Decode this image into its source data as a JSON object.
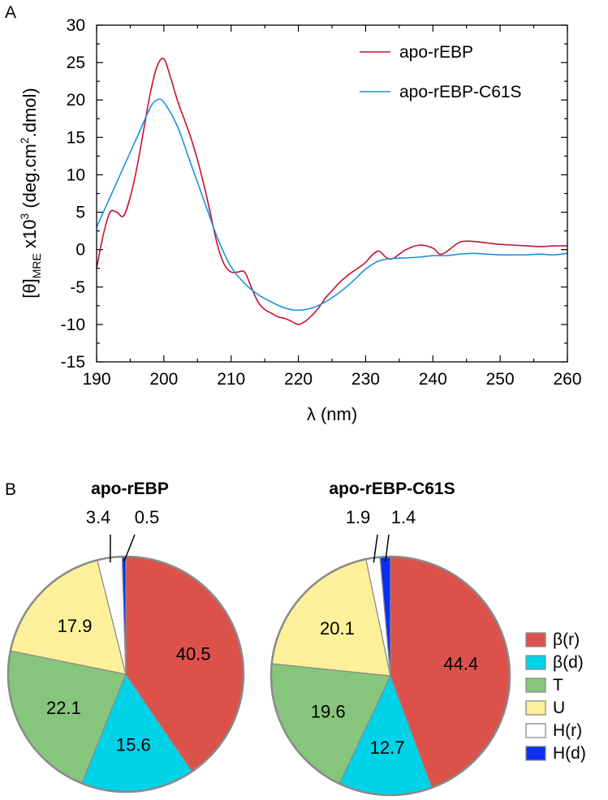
{
  "panels": {
    "a": "A",
    "b": "B"
  },
  "chart_data": [
    {
      "type": "line",
      "ylabel": {
        "base": "[θ]",
        "sub": "MRE",
        "rest1": " x10",
        "sup1": "3",
        "rest2": " (deg.cm",
        "sup2": "2",
        "rest3": ".dmol)"
      },
      "xlabel": "λ (nm)",
      "xlim": [
        190,
        260
      ],
      "ylim": [
        -15,
        30
      ],
      "xticks": [
        190,
        200,
        210,
        220,
        230,
        240,
        250,
        260
      ],
      "yticks": [
        -15,
        -10,
        -5,
        0,
        5,
        10,
        15,
        20,
        25,
        30
      ],
      "legend_position": "top-right",
      "grid": false,
      "series": [
        {
          "name": "apo-rEBP",
          "color": "#c8102e",
          "x": [
            190,
            191,
            192,
            193,
            194,
            195,
            196,
            197,
            198,
            199,
            200,
            201,
            202,
            203,
            204,
            205,
            206,
            207,
            208,
            209,
            210,
            211,
            212,
            213,
            214,
            215,
            216,
            217,
            218,
            219,
            220,
            221,
            222,
            223,
            224,
            225,
            226,
            227,
            228,
            229,
            230,
            231,
            232,
            233,
            234,
            236,
            238,
            240,
            241,
            242,
            244,
            246,
            248,
            250,
            252,
            254,
            256,
            258,
            260
          ],
          "y": [
            -2.5,
            2,
            5,
            5,
            4.5,
            7,
            11,
            16,
            21,
            24.5,
            25.5,
            23,
            20,
            17.5,
            15,
            12,
            8.5,
            4.5,
            0.5,
            -2,
            -3,
            -3,
            -3,
            -5,
            -7,
            -8,
            -8.5,
            -9,
            -9.2,
            -9.6,
            -10,
            -9.6,
            -8.8,
            -7.8,
            -6.5,
            -5.5,
            -4.5,
            -3.7,
            -3,
            -2.4,
            -1.7,
            -0.7,
            -0.2,
            -1,
            -1.2,
            0,
            0.6,
            0.2,
            -0.6,
            -0.3,
            1,
            1.1,
            0.9,
            0.7,
            0.6,
            0.5,
            0.4,
            0.5,
            0.5
          ]
        },
        {
          "name": "apo-rEBP-C61S",
          "color": "#1e90e0",
          "x": [
            190,
            192,
            194,
            196,
            198,
            199,
            200,
            202,
            204,
            206,
            208,
            210,
            212,
            214,
            216,
            218,
            220,
            222,
            224,
            226,
            228,
            230,
            232,
            234,
            236,
            238,
            240,
            242,
            244,
            246,
            248,
            250,
            252,
            254,
            256,
            258,
            260
          ],
          "y": [
            3,
            7,
            11,
            15,
            19,
            20,
            19.7,
            16.5,
            11.5,
            6.5,
            1.5,
            -2.3,
            -4.5,
            -6,
            -7,
            -7.8,
            -8.1,
            -7.8,
            -7,
            -5.8,
            -4.3,
            -2.6,
            -1.5,
            -1.2,
            -1.1,
            -1,
            -0.8,
            -0.8,
            -0.6,
            -0.5,
            -0.6,
            -0.7,
            -0.7,
            -0.7,
            -0.6,
            -0.7,
            -0.5
          ]
        }
      ]
    },
    {
      "type": "pie",
      "title": "apo-rEBP",
      "categories": [
        "β(r)",
        "β(d)",
        "T",
        "U",
        "H(r)",
        "H(d)"
      ],
      "values": [
        40.5,
        15.6,
        22.1,
        17.9,
        3.4,
        0.5
      ],
      "labels": [
        "40.5",
        "15.6",
        "22.1",
        "17.9",
        "3.4",
        "0.5"
      ]
    },
    {
      "type": "pie",
      "title": "apo-rEBP-C61S",
      "categories": [
        "β(r)",
        "β(d)",
        "T",
        "U",
        "H(r)",
        "H(d)"
      ],
      "values": [
        44.4,
        12.7,
        19.6,
        20.1,
        1.9,
        1.4
      ],
      "labels": [
        "44.4",
        "12.7",
        "19.6",
        "20.1",
        "1.9",
        "1.4"
      ]
    }
  ],
  "pie_legend": [
    {
      "label": "β(r)",
      "color": "#dc524a"
    },
    {
      "label": "β(d)",
      "color": "#00d2e8"
    },
    {
      "label": "T",
      "color": "#86c67c"
    },
    {
      "label": "U",
      "color": "#fcf09a"
    },
    {
      "label": "H(r)",
      "color": "#ffffff"
    },
    {
      "label": "H(d)",
      "color": "#0a2ff0"
    }
  ]
}
